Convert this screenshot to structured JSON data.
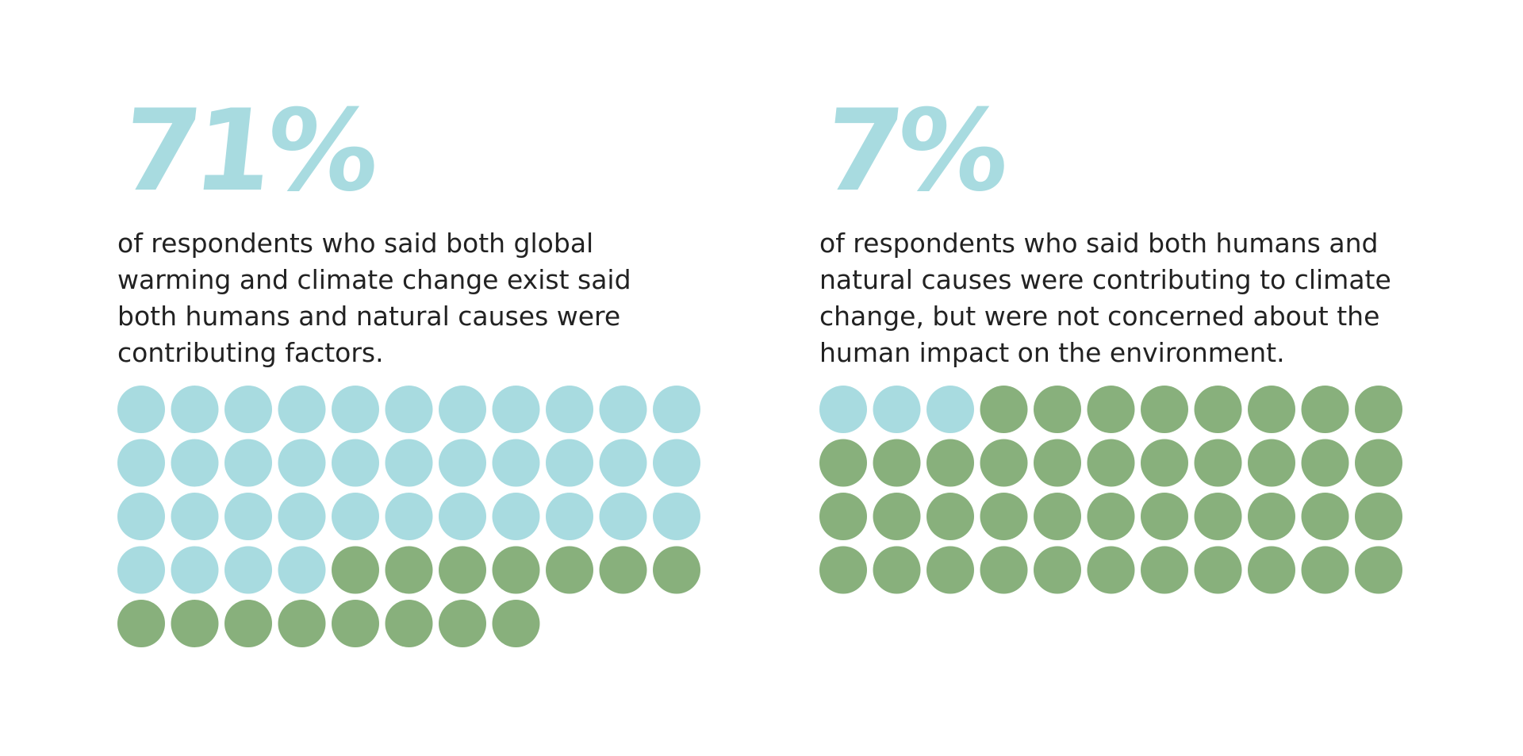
{
  "colors": {
    "accent_blue": "#a8dbe0",
    "accent_green": "#88b07c",
    "text": "#222222",
    "background": "#ffffff"
  },
  "chart_data": [
    {
      "type": "waffle",
      "title": "71%",
      "subtitle_lines": [
        "of respondents who said both global",
        "warming and climate change exist said",
        "both humans and natural causes were",
        "contributing factors."
      ],
      "total_dots": 52,
      "highlighted_dots": 37,
      "columns": 11,
      "value_percent": 71,
      "series": [
        {
          "color": "#a8dbe0",
          "count": 37
        },
        {
          "color": "#88b07c",
          "count": 15
        }
      ]
    },
    {
      "type": "waffle",
      "title": "7%",
      "subtitle_lines": [
        "of respondents who said both humans and",
        "natural causes were contributing to climate",
        "change, but were not concerned about the",
        "human impact on the environment."
      ],
      "total_dots": 44,
      "highlighted_dots": 3,
      "columns": 11,
      "value_percent": 7,
      "series": [
        {
          "color": "#a8dbe0",
          "count": 3
        },
        {
          "color": "#88b07c",
          "count": 41
        }
      ]
    }
  ]
}
